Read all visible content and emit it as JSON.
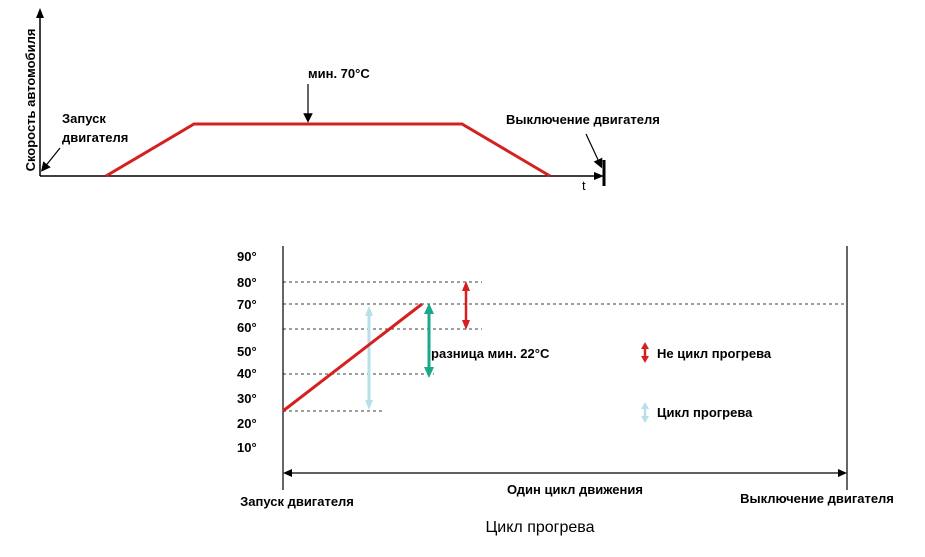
{
  "top_chart": {
    "y_axis_label": "Скорость автомобиля",
    "x_axis_label": "t",
    "start_label_line1": "Запуск",
    "start_label_line2": "двигателя",
    "min_temp_label": "мин. 70°C",
    "stop_label": "Выключение двигателя",
    "line_color": "#d62020"
  },
  "bottom_chart": {
    "y_ticks": [
      "90°",
      "80°",
      "70°",
      "60°",
      "50°",
      "40°",
      "30°",
      "20°",
      "10°"
    ],
    "difference_label": "разница мин. 22°C",
    "legend": {
      "not_warmup": "Не цикл прогрева",
      "warmup": "Цикл прогрева"
    },
    "start_label": "Запуск двигателя",
    "drive_cycle_label": "Один цикл движения",
    "stop_label": "Выключение двигателя",
    "caption": "Цикл прогрева",
    "colors": {
      "temp_line": "#d62020",
      "not_warmup_arrow": "#d62020",
      "warmup_arrow_dark": "#1aa88a",
      "warmup_arrow_light": "#b8e0e8"
    }
  }
}
